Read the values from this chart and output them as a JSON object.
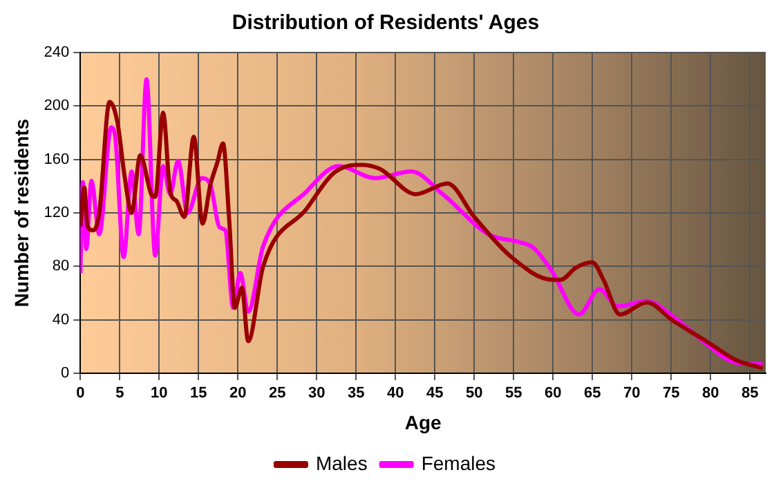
{
  "chart_data": {
    "type": "line",
    "title": "Distribution of Residents' Ages",
    "xlabel": "Age",
    "ylabel": "Number of residents",
    "xlim": [
      0,
      87
    ],
    "xticks": [
      0,
      5,
      10,
      15,
      20,
      25,
      30,
      35,
      40,
      45,
      50,
      55,
      60,
      65,
      70,
      75,
      80,
      85
    ],
    "ylim": [
      0,
      240
    ],
    "yticks": [
      0,
      40,
      80,
      120,
      160,
      200,
      240
    ],
    "grid": true,
    "legend": "bottom",
    "marker": "none",
    "line_style": "solid",
    "series": [
      {
        "name": "Males",
        "color": "#990000",
        "x": [
          0,
          0.5,
          0.9,
          1.6,
          2.4,
          3.7,
          4.7,
          5.6,
          6.5,
          7.6,
          9,
          9.5,
          10.5,
          11.4,
          12.2,
          13.2,
          14.4,
          15.5,
          16.5,
          17.4,
          18.1,
          18.9,
          19.6,
          20.5,
          21.3,
          23.2,
          28.7,
          32.2,
          35.7,
          38,
          42.6,
          46.6,
          50,
          54.7,
          59.9,
          61,
          62.9,
          65,
          66.4,
          68.5,
          71.9,
          75.1,
          79.7,
          83.2,
          86.6
        ],
        "values": [
          110,
          139,
          110,
          107,
          120,
          203,
          188,
          148,
          120,
          163,
          134,
          132,
          195,
          136,
          129,
          117,
          177,
          112,
          141,
          158,
          172,
          114,
          49,
          64,
          24,
          80,
          123,
          150,
          156,
          153,
          134,
          142,
          117,
          87,
          70,
          70,
          79,
          83,
          70,
          44,
          53,
          40,
          23,
          10,
          4
        ]
      },
      {
        "name": "Females",
        "color": "#ff00ff",
        "x": [
          0,
          0.3,
          0.75,
          1.4,
          2.4,
          3.9,
          4.4,
          5.5,
          6.5,
          7.4,
          8.4,
          9.5,
          10.5,
          11.4,
          12.4,
          13.6,
          15.4,
          16.5,
          17.7,
          18.4,
          19.4,
          20.3,
          21.3,
          23.2,
          28.7,
          32.8,
          37.4,
          42,
          46,
          51.8,
          55.8,
          57.5,
          59.8,
          63.3,
          65.9,
          68.2,
          71.9,
          75.1,
          79.7,
          83.2,
          86.6
        ],
        "values": [
          75,
          143,
          93,
          144,
          104,
          184,
          178,
          87,
          151,
          104,
          220,
          88,
          155,
          134,
          159,
          120,
          146,
          141,
          109,
          107,
          49,
          75,
          46,
          95,
          136,
          155,
          146,
          151,
          134,
          104,
          98,
          94,
          77,
          44,
          63,
          50,
          54,
          43,
          21,
          8,
          7
        ]
      }
    ]
  }
}
